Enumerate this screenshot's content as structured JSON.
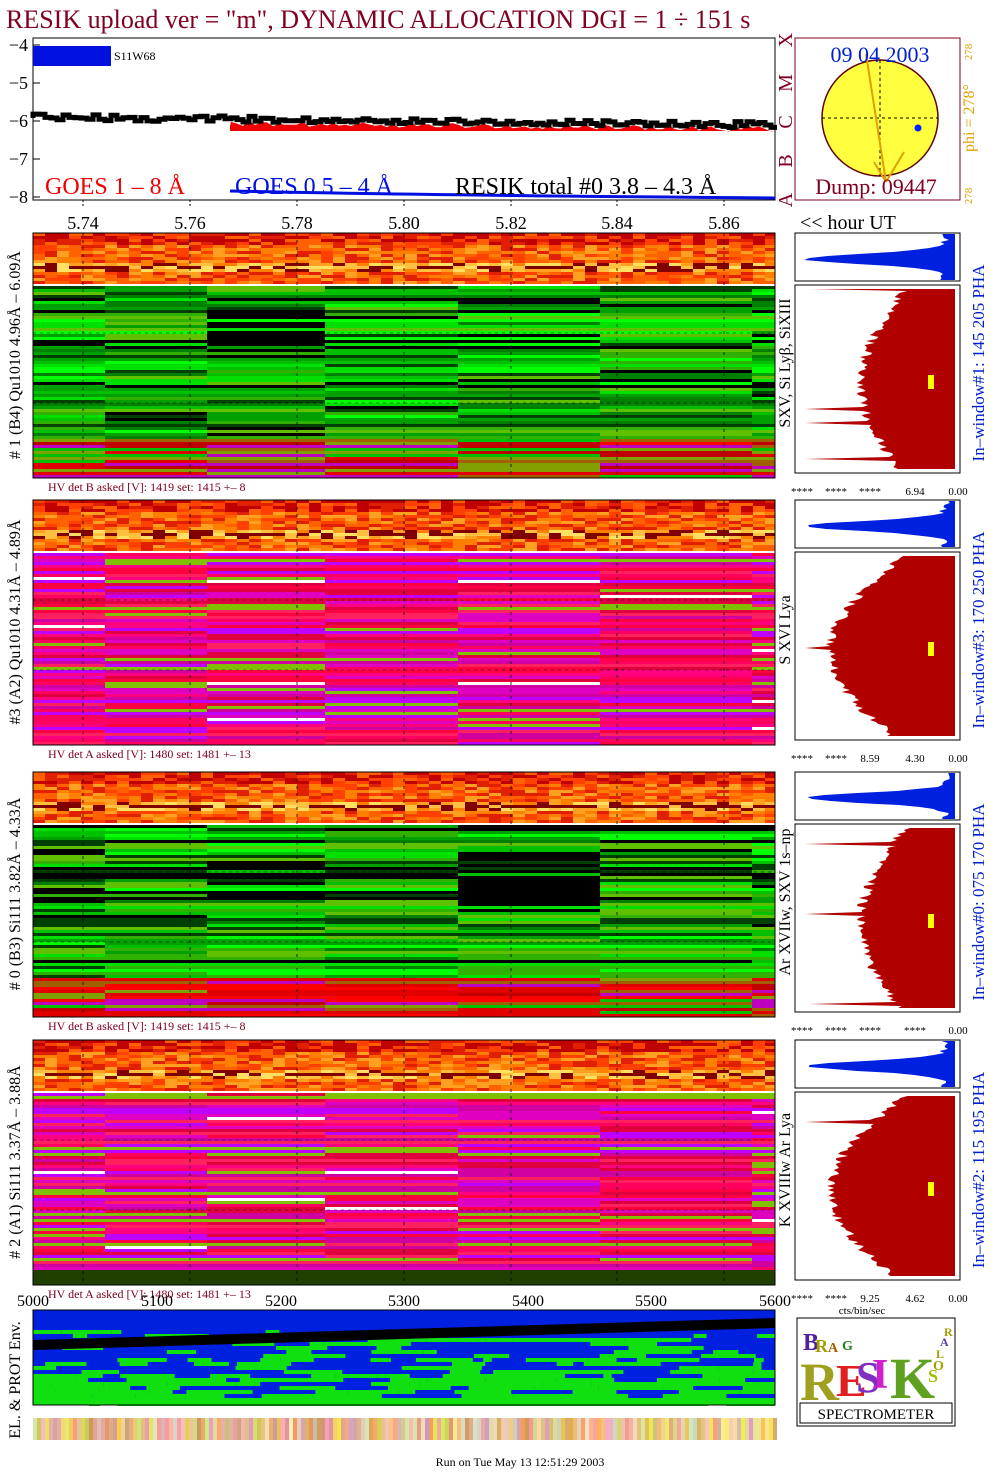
{
  "title": "RESIK upload ver = \"m\", DYNAMIC ALLOCATION  DGI =   1 ÷ 151 s",
  "goes": {
    "yticks": [
      "−4",
      "−5",
      "−6",
      "−7",
      "−8"
    ],
    "region": "S11W68",
    "legend": [
      "GOES 1 – 8 Å",
      "GOES 0.5 – 4 Å",
      "RESIK total #0  3.8 – 4.3 Å"
    ],
    "classes": [
      "X",
      "M",
      "C",
      "B",
      "A"
    ]
  },
  "sun": {
    "date": "09 04 2003",
    "dump": "Dump: 09447",
    "phi": "phi = 278°",
    "phi_top": "278",
    "phi_bottom": "278"
  },
  "time_ticks": [
    "5.74",
    "5.76",
    "5.78",
    "5.80",
    "5.82",
    "5.84",
    "5.86"
  ],
  "time_unit": "<< hour UT",
  "panels": [
    {
      "label": "# 1 (B4) Qu1010 4.96Å – 6.09Å",
      "lines": "SXV, Si Lyβ, SiXIII",
      "hv": "HV det B asked [V]:  1419 set:  1415 +–    8",
      "pha_ticks": [
        "****",
        "****",
        "****",
        "6.94",
        "0.00"
      ],
      "window": "In–window#1:  145 205 PHA"
    },
    {
      "label": "#3 (A2) Qu1010  4.31Å – 4.89Å",
      "lines": "S XVI Lya",
      "hv": "HV det A asked [V]:  1480 set:  1481 +–   13",
      "pha_ticks": [
        "****",
        "****",
        "8.59",
        "4.30",
        "0.00"
      ],
      "window": "In–window#3:  170 250 PHA"
    },
    {
      "label": "# 0 (B3) Si111  3.82Å – 4.33Å",
      "lines": "Ar XVIIw, SXV 1s–np",
      "hv": "HV det B asked [V]:  1419 set:  1415 +–    8",
      "pha_ticks": [
        "****",
        "****",
        "****",
        "****",
        "0.00"
      ],
      "window": "In–window#0:  075 170 PHA"
    },
    {
      "label": "# 2 (A1) Si111  3.37Å – 3.88Å",
      "lines": "K XVIIIw  Ar Lya",
      "hv": "HV det A asked [V]:  1480 set:  1481 +–   13",
      "pha_ticks": [
        "****",
        "****",
        "9.25",
        "4.62",
        "0.00"
      ],
      "window": "In–window#2:  115 195 PHA"
    }
  ],
  "pha_unit": "cts/bin/sec",
  "bottom_ticks": [
    "5000",
    "5100",
    "5200",
    "5300",
    "5400",
    "5500",
    "5600"
  ],
  "env_label": "EL. & PROT Env.",
  "logo": {
    "letters": [
      "B",
      "R",
      "A",
      "G",
      "R",
      "E",
      "S",
      "I",
      "K",
      "S",
      "O",
      "L",
      "A",
      "R"
    ],
    "name": "SPECTROMETER"
  },
  "footer": "Run on Tue May 13 12:51:29 2003"
}
